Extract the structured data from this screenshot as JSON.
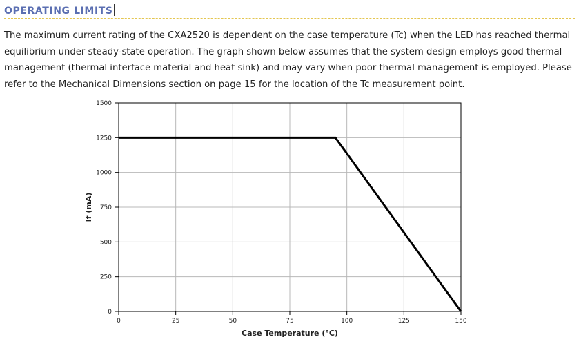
{
  "section": {
    "title": "OPERATING LIMITS",
    "heading_color": "#5b6fb2",
    "rule_color": "#e4c650"
  },
  "body_text": "The maximum current rating of the CXA2520 is dependent on the case temperature (Tc) when the LED has reached thermal equilibrium under steady-state operation. The graph shown below assumes that the system design employs good thermal management (thermal interface material and heat sink) and may vary when poor thermal management is employed. Please refer to the Mechanical Dimensions section on page 15 for the location of the Tc measurement point.",
  "chart_data": {
    "type": "line",
    "title": "",
    "xlabel": "Case Temperature (°C)",
    "ylabel": "If (mA)",
    "xlim": [
      0,
      150
    ],
    "ylim": [
      0,
      1500
    ],
    "x_ticks": [
      0,
      25,
      50,
      75,
      100,
      125,
      150
    ],
    "y_ticks": [
      0,
      250,
      500,
      750,
      1000,
      1250,
      1500
    ],
    "grid": true,
    "series": [
      {
        "x": [
          0,
          95,
          150
        ],
        "y": [
          1250,
          1250,
          0
        ],
        "color": "#000000"
      }
    ]
  }
}
